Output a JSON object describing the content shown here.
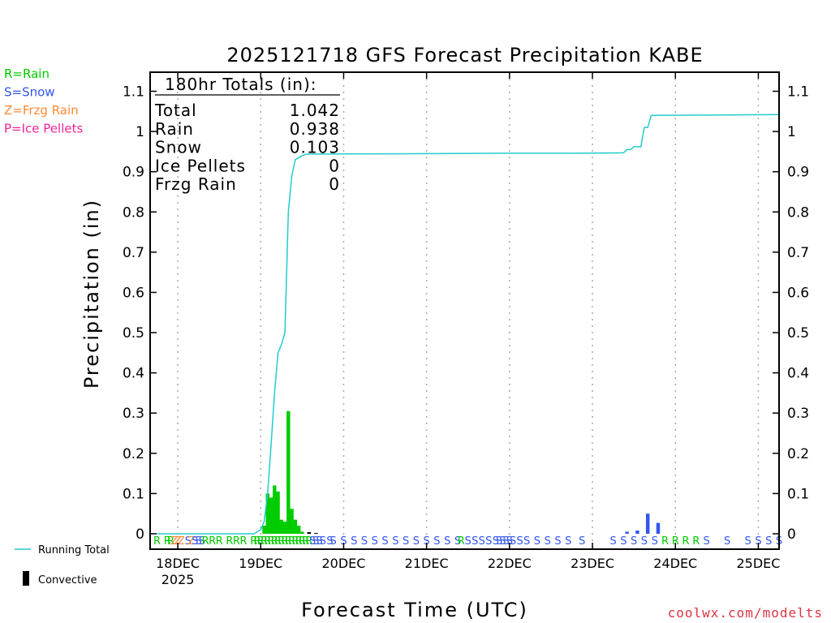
{
  "chart_data": {
    "type": "bar",
    "title": "2025121718 GFS Forecast Precipitation KABE",
    "xlabel": "Forecast Time (UTC)",
    "ylabel": "Precipitation (in)",
    "ylim": [
      0,
      1.15
    ],
    "y_ticks": [
      0,
      0.1,
      0.2,
      0.3,
      0.4,
      0.5,
      0.6,
      0.7,
      0.8,
      0.9,
      1,
      1.1
    ],
    "y_tick_labels": [
      "0",
      "0.1",
      "0.2",
      "0.3",
      "0.4",
      "0.5",
      "0.6",
      "0.7",
      "0.8",
      "0.9",
      "1",
      "1.1"
    ],
    "x_range_hours": [
      -2,
      180
    ],
    "x_ticks": [
      {
        "hour": 6,
        "label": "18DEC"
      },
      {
        "hour": 30,
        "label": "19DEC"
      },
      {
        "hour": 54,
        "label": "20DEC"
      },
      {
        "hour": 78,
        "label": "21DEC"
      },
      {
        "hour": 102,
        "label": "22DEC"
      },
      {
        "hour": 126,
        "label": "23DEC"
      },
      {
        "hour": 150,
        "label": "24DEC"
      },
      {
        "hour": 174,
        "label": "25DEC"
      }
    ],
    "first_tick_year": "2025",
    "grid": "vertical-dotted",
    "totals": {
      "header": "180hr Totals (in):",
      "rows": [
        {
          "label": "Total",
          "value": "1.042"
        },
        {
          "label": "Rain",
          "value": "0.938"
        },
        {
          "label": "Snow",
          "value": "0.103"
        },
        {
          "label": "Ice Pellets",
          "value": "0"
        },
        {
          "label": "Frzg Rain",
          "value": "0"
        }
      ]
    },
    "legend_types": [
      {
        "code": "R=Rain",
        "color": "#00cc00"
      },
      {
        "code": "S=Snow",
        "color": "#3355ee"
      },
      {
        "code": "Z=Frzg Rain",
        "color": "#ff8833"
      },
      {
        "code": "P=Ice Pellets",
        "color": "#ee2299"
      }
    ],
    "legend_lines": [
      {
        "label": "Running Total",
        "color": "#22cccc"
      },
      {
        "label": "Convective",
        "color": "#000000"
      }
    ],
    "watermark": "coolwx.com/modelts",
    "series": [
      {
        "name": "Running Total",
        "type": "line",
        "color": "#22cccc",
        "points": [
          [
            0,
            0
          ],
          [
            28,
            0
          ],
          [
            29,
            0.005
          ],
          [
            30,
            0.01
          ],
          [
            31,
            0.03
          ],
          [
            32,
            0.1
          ],
          [
            33,
            0.22
          ],
          [
            34,
            0.35
          ],
          [
            35,
            0.45
          ],
          [
            36,
            0.47
          ],
          [
            37,
            0.5
          ],
          [
            38,
            0.8
          ],
          [
            39,
            0.89
          ],
          [
            40,
            0.93
          ],
          [
            41,
            0.935
          ],
          [
            42,
            0.94
          ],
          [
            43,
            0.943
          ],
          [
            44,
            0.944
          ],
          [
            48,
            0.944
          ],
          [
            80,
            0.945
          ],
          [
            100,
            0.946
          ],
          [
            120,
            0.946
          ],
          [
            135,
            0.947
          ],
          [
            136,
            0.955
          ],
          [
            137,
            0.955
          ],
          [
            138,
            0.962
          ],
          [
            140,
            0.962
          ],
          [
            141,
            1.01
          ],
          [
            142,
            1.01
          ],
          [
            143,
            1.04
          ],
          [
            180,
            1.042
          ]
        ]
      },
      {
        "name": "Rain",
        "type": "bar",
        "color": "#00cc00",
        "bars": [
          [
            31,
            0.02
          ],
          [
            32,
            0.1
          ],
          [
            33,
            0.09
          ],
          [
            34,
            0.12
          ],
          [
            35,
            0.105
          ],
          [
            36,
            0.035
          ],
          [
            37,
            0.03
          ],
          [
            38,
            0.305
          ],
          [
            39,
            0.062
          ],
          [
            40,
            0.035
          ],
          [
            41,
            0.02
          ],
          [
            42,
            0.005
          ]
        ]
      },
      {
        "name": "Snow",
        "type": "bar",
        "color": "#3355ee",
        "bars": [
          [
            136,
            0.005
          ],
          [
            139,
            0.008
          ],
          [
            142,
            0.05
          ],
          [
            145,
            0.027
          ]
        ]
      },
      {
        "name": "Convective",
        "type": "bar",
        "color": "#000000",
        "bars": [
          [
            44,
            0.004
          ],
          [
            46,
            0.002
          ]
        ]
      }
    ],
    "ptype_row": [
      {
        "hour": 0,
        "t": "R",
        "c": "#00cc00"
      },
      {
        "hour": 3,
        "t": "R",
        "c": "#00cc00"
      },
      {
        "hour": 4,
        "t": "R",
        "c": "#00cc00"
      },
      {
        "hour": 5,
        "t": "Z",
        "c": "#ff8833"
      },
      {
        "hour": 6,
        "t": "Z",
        "c": "#ff8833"
      },
      {
        "hour": 7,
        "t": "Z",
        "c": "#ff8833"
      },
      {
        "hour": 9,
        "t": "S",
        "c": "#3355ee"
      },
      {
        "hour": 10,
        "t": "Z",
        "c": "#ff8833"
      },
      {
        "hour": 11,
        "t": "S",
        "c": "#3355ee"
      },
      {
        "hour": 12,
        "t": "S",
        "c": "#3355ee"
      },
      {
        "hour": 13,
        "t": "S",
        "c": "#3355ee"
      },
      {
        "hour": 14,
        "t": "R",
        "c": "#00cc00"
      },
      {
        "hour": 16,
        "t": "R",
        "c": "#00cc00"
      },
      {
        "hour": 18,
        "t": "R",
        "c": "#00cc00"
      },
      {
        "hour": 21,
        "t": "R",
        "c": "#00cc00"
      },
      {
        "hour": 23,
        "t": "R",
        "c": "#00cc00"
      },
      {
        "hour": 25,
        "t": "R",
        "c": "#00cc00"
      },
      {
        "hour": 28,
        "t": "R",
        "c": "#00cc00"
      },
      {
        "hour": 29,
        "t": "R",
        "c": "#00cc00"
      },
      {
        "hour": 30,
        "t": "R",
        "c": "#00cc00"
      },
      {
        "hour": 31,
        "t": "R",
        "c": "#00cc00"
      },
      {
        "hour": 32,
        "t": "R",
        "c": "#00cc00"
      },
      {
        "hour": 33,
        "t": "R",
        "c": "#00cc00"
      },
      {
        "hour": 34,
        "t": "R",
        "c": "#00cc00"
      },
      {
        "hour": 35,
        "t": "R",
        "c": "#00cc00"
      },
      {
        "hour": 36,
        "t": "R",
        "c": "#00cc00"
      },
      {
        "hour": 37,
        "t": "R",
        "c": "#00cc00"
      },
      {
        "hour": 38,
        "t": "R",
        "c": "#00cc00"
      },
      {
        "hour": 39,
        "t": "R",
        "c": "#00cc00"
      },
      {
        "hour": 40,
        "t": "R",
        "c": "#00cc00"
      },
      {
        "hour": 41,
        "t": "R",
        "c": "#00cc00"
      },
      {
        "hour": 42,
        "t": "R",
        "c": "#00cc00"
      },
      {
        "hour": 43,
        "t": "R",
        "c": "#00cc00"
      },
      {
        "hour": 44,
        "t": "R",
        "c": "#00cc00"
      },
      {
        "hour": 45,
        "t": "S",
        "c": "#3355ee"
      },
      {
        "hour": 46,
        "t": "S",
        "c": "#3355ee"
      },
      {
        "hour": 47,
        "t": "S",
        "c": "#3355ee"
      },
      {
        "hour": 48,
        "t": "S",
        "c": "#3355ee"
      },
      {
        "hour": 50,
        "t": "S",
        "c": "#3355ee"
      },
      {
        "hour": 51,
        "t": "S",
        "c": "#3355ee"
      },
      {
        "hour": 54,
        "t": "S",
        "c": "#3355ee"
      },
      {
        "hour": 57,
        "t": "S",
        "c": "#3355ee"
      },
      {
        "hour": 60,
        "t": "S",
        "c": "#3355ee"
      },
      {
        "hour": 63,
        "t": "S",
        "c": "#3355ee"
      },
      {
        "hour": 66,
        "t": "S",
        "c": "#3355ee"
      },
      {
        "hour": 69,
        "t": "S",
        "c": "#3355ee"
      },
      {
        "hour": 72,
        "t": "S",
        "c": "#3355ee"
      },
      {
        "hour": 75,
        "t": "S",
        "c": "#3355ee"
      },
      {
        "hour": 78,
        "t": "S",
        "c": "#3355ee"
      },
      {
        "hour": 81,
        "t": "S",
        "c": "#3355ee"
      },
      {
        "hour": 84,
        "t": "S",
        "c": "#3355ee"
      },
      {
        "hour": 87,
        "t": "S",
        "c": "#3355ee"
      },
      {
        "hour": 88,
        "t": "R",
        "c": "#00cc00"
      },
      {
        "hour": 90,
        "t": "S",
        "c": "#3355ee"
      },
      {
        "hour": 92,
        "t": "S",
        "c": "#3355ee"
      },
      {
        "hour": 94,
        "t": "S",
        "c": "#3355ee"
      },
      {
        "hour": 96,
        "t": "S",
        "c": "#3355ee"
      },
      {
        "hour": 98,
        "t": "S",
        "c": "#3355ee"
      },
      {
        "hour": 99,
        "t": "S",
        "c": "#3355ee"
      },
      {
        "hour": 100,
        "t": "S",
        "c": "#3355ee"
      },
      {
        "hour": 101,
        "t": "S",
        "c": "#3355ee"
      },
      {
        "hour": 102,
        "t": "S",
        "c": "#3355ee"
      },
      {
        "hour": 103,
        "t": "S",
        "c": "#3355ee"
      },
      {
        "hour": 105,
        "t": "S",
        "c": "#3355ee"
      },
      {
        "hour": 107,
        "t": "S",
        "c": "#3355ee"
      },
      {
        "hour": 110,
        "t": "S",
        "c": "#3355ee"
      },
      {
        "hour": 113,
        "t": "S",
        "c": "#3355ee"
      },
      {
        "hour": 116,
        "t": "S",
        "c": "#3355ee"
      },
      {
        "hour": 119,
        "t": "S",
        "c": "#3355ee"
      },
      {
        "hour": 123,
        "t": "S",
        "c": "#3355ee"
      },
      {
        "hour": 132,
        "t": "S",
        "c": "#3355ee"
      },
      {
        "hour": 135,
        "t": "S",
        "c": "#3355ee"
      },
      {
        "hour": 138,
        "t": "S",
        "c": "#3355ee"
      },
      {
        "hour": 141,
        "t": "S",
        "c": "#3355ee"
      },
      {
        "hour": 144,
        "t": "S",
        "c": "#3355ee"
      },
      {
        "hour": 147,
        "t": "R",
        "c": "#00cc00"
      },
      {
        "hour": 150,
        "t": "R",
        "c": "#00cc00"
      },
      {
        "hour": 153,
        "t": "R",
        "c": "#00cc00"
      },
      {
        "hour": 156,
        "t": "R",
        "c": "#00cc00"
      },
      {
        "hour": 159,
        "t": "S",
        "c": "#3355ee"
      },
      {
        "hour": 165,
        "t": "S",
        "c": "#3355ee"
      },
      {
        "hour": 171,
        "t": "S",
        "c": "#3355ee"
      },
      {
        "hour": 174,
        "t": "S",
        "c": "#3355ee"
      },
      {
        "hour": 177,
        "t": "S",
        "c": "#3355ee"
      },
      {
        "hour": 180,
        "t": "S",
        "c": "#3355ee"
      }
    ]
  }
}
